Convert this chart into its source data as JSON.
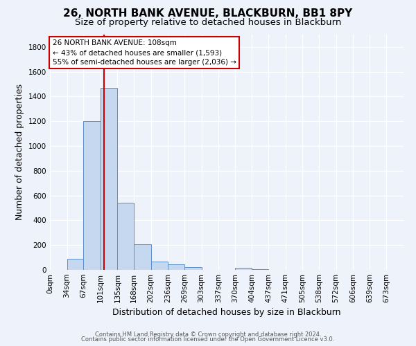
{
  "title": "26, NORTH BANK AVENUE, BLACKBURN, BB1 8PY",
  "subtitle": "Size of property relative to detached houses in Blackburn",
  "xlabel": "Distribution of detached houses by size in Blackburn",
  "ylabel": "Number of detached properties",
  "footer_line1": "Contains HM Land Registry data © Crown copyright and database right 2024.",
  "footer_line2": "Contains public sector information licensed under the Open Government Licence v3.0.",
  "bar_labels": [
    "0sqm",
    "34sqm",
    "67sqm",
    "101sqm",
    "135sqm",
    "168sqm",
    "202sqm",
    "236sqm",
    "269sqm",
    "303sqm",
    "337sqm",
    "370sqm",
    "404sqm",
    "437sqm",
    "471sqm",
    "505sqm",
    "538sqm",
    "572sqm",
    "606sqm",
    "639sqm",
    "673sqm"
  ],
  "bar_values": [
    0,
    90,
    1200,
    1470,
    540,
    205,
    65,
    45,
    25,
    0,
    0,
    15,
    5,
    0,
    0,
    0,
    0,
    0,
    0,
    0,
    0
  ],
  "bin_edges": [
    0,
    34,
    67,
    101,
    135,
    168,
    202,
    236,
    269,
    303,
    337,
    370,
    404,
    437,
    471,
    505,
    538,
    572,
    606,
    639,
    673,
    707
  ],
  "bar_color": "#c5d8f0",
  "bar_edge_color": "#5b8fc9",
  "vline_x": 108,
  "vline_color": "#cc0000",
  "ylim": [
    0,
    1900
  ],
  "yticks": [
    0,
    200,
    400,
    600,
    800,
    1000,
    1200,
    1400,
    1600,
    1800
  ],
  "annotation_title": "26 NORTH BANK AVENUE: 108sqm",
  "annotation_line1": "← 43% of detached houses are smaller (1,593)",
  "annotation_line2": "55% of semi-detached houses are larger (2,036) →",
  "annotation_box_color": "#ffffff",
  "annotation_box_edge": "#cc0000",
  "bg_color": "#eef2fa",
  "grid_color": "#ffffff",
  "title_fontsize": 11,
  "subtitle_fontsize": 9.5,
  "axis_label_fontsize": 9,
  "tick_fontsize": 7.5,
  "footer_fontsize": 6
}
